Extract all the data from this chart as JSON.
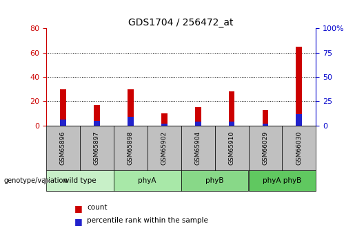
{
  "title": "GDS1704 / 256472_at",
  "samples": [
    "GSM65896",
    "GSM65897",
    "GSM65898",
    "GSM65902",
    "GSM65904",
    "GSM65910",
    "GSM66029",
    "GSM66030"
  ],
  "count_values": [
    30,
    17,
    30,
    10,
    15,
    28,
    13,
    65
  ],
  "percentile_values": [
    6,
    5,
    9,
    2,
    4,
    4,
    2,
    12
  ],
  "groups": [
    {
      "label": "wild type",
      "color": "#c8f0c8",
      "start": 0,
      "end": 2
    },
    {
      "label": "phyA",
      "color": "#a8e8a8",
      "start": 2,
      "end": 4
    },
    {
      "label": "phyB",
      "color": "#88d888",
      "start": 4,
      "end": 6
    },
    {
      "label": "phyA phyB",
      "color": "#60c860",
      "start": 6,
      "end": 8
    }
  ],
  "left_ylim": [
    0,
    80
  ],
  "right_ylim": [
    0,
    100
  ],
  "left_yticks": [
    0,
    20,
    40,
    60,
    80
  ],
  "right_yticks": [
    0,
    25,
    50,
    75,
    100
  ],
  "left_tick_color": "#cc0000",
  "right_tick_color": "#0000cc",
  "bar_color_red": "#cc0000",
  "bar_color_blue": "#2222cc",
  "grid_color": "#000000",
  "label_genotype": "genotype/variation",
  "legend_count": "count",
  "legend_percentile": "percentile rank within the sample",
  "sample_box_color": "#c0c0c0",
  "background_color": "#ffffff",
  "bar_width": 0.18
}
